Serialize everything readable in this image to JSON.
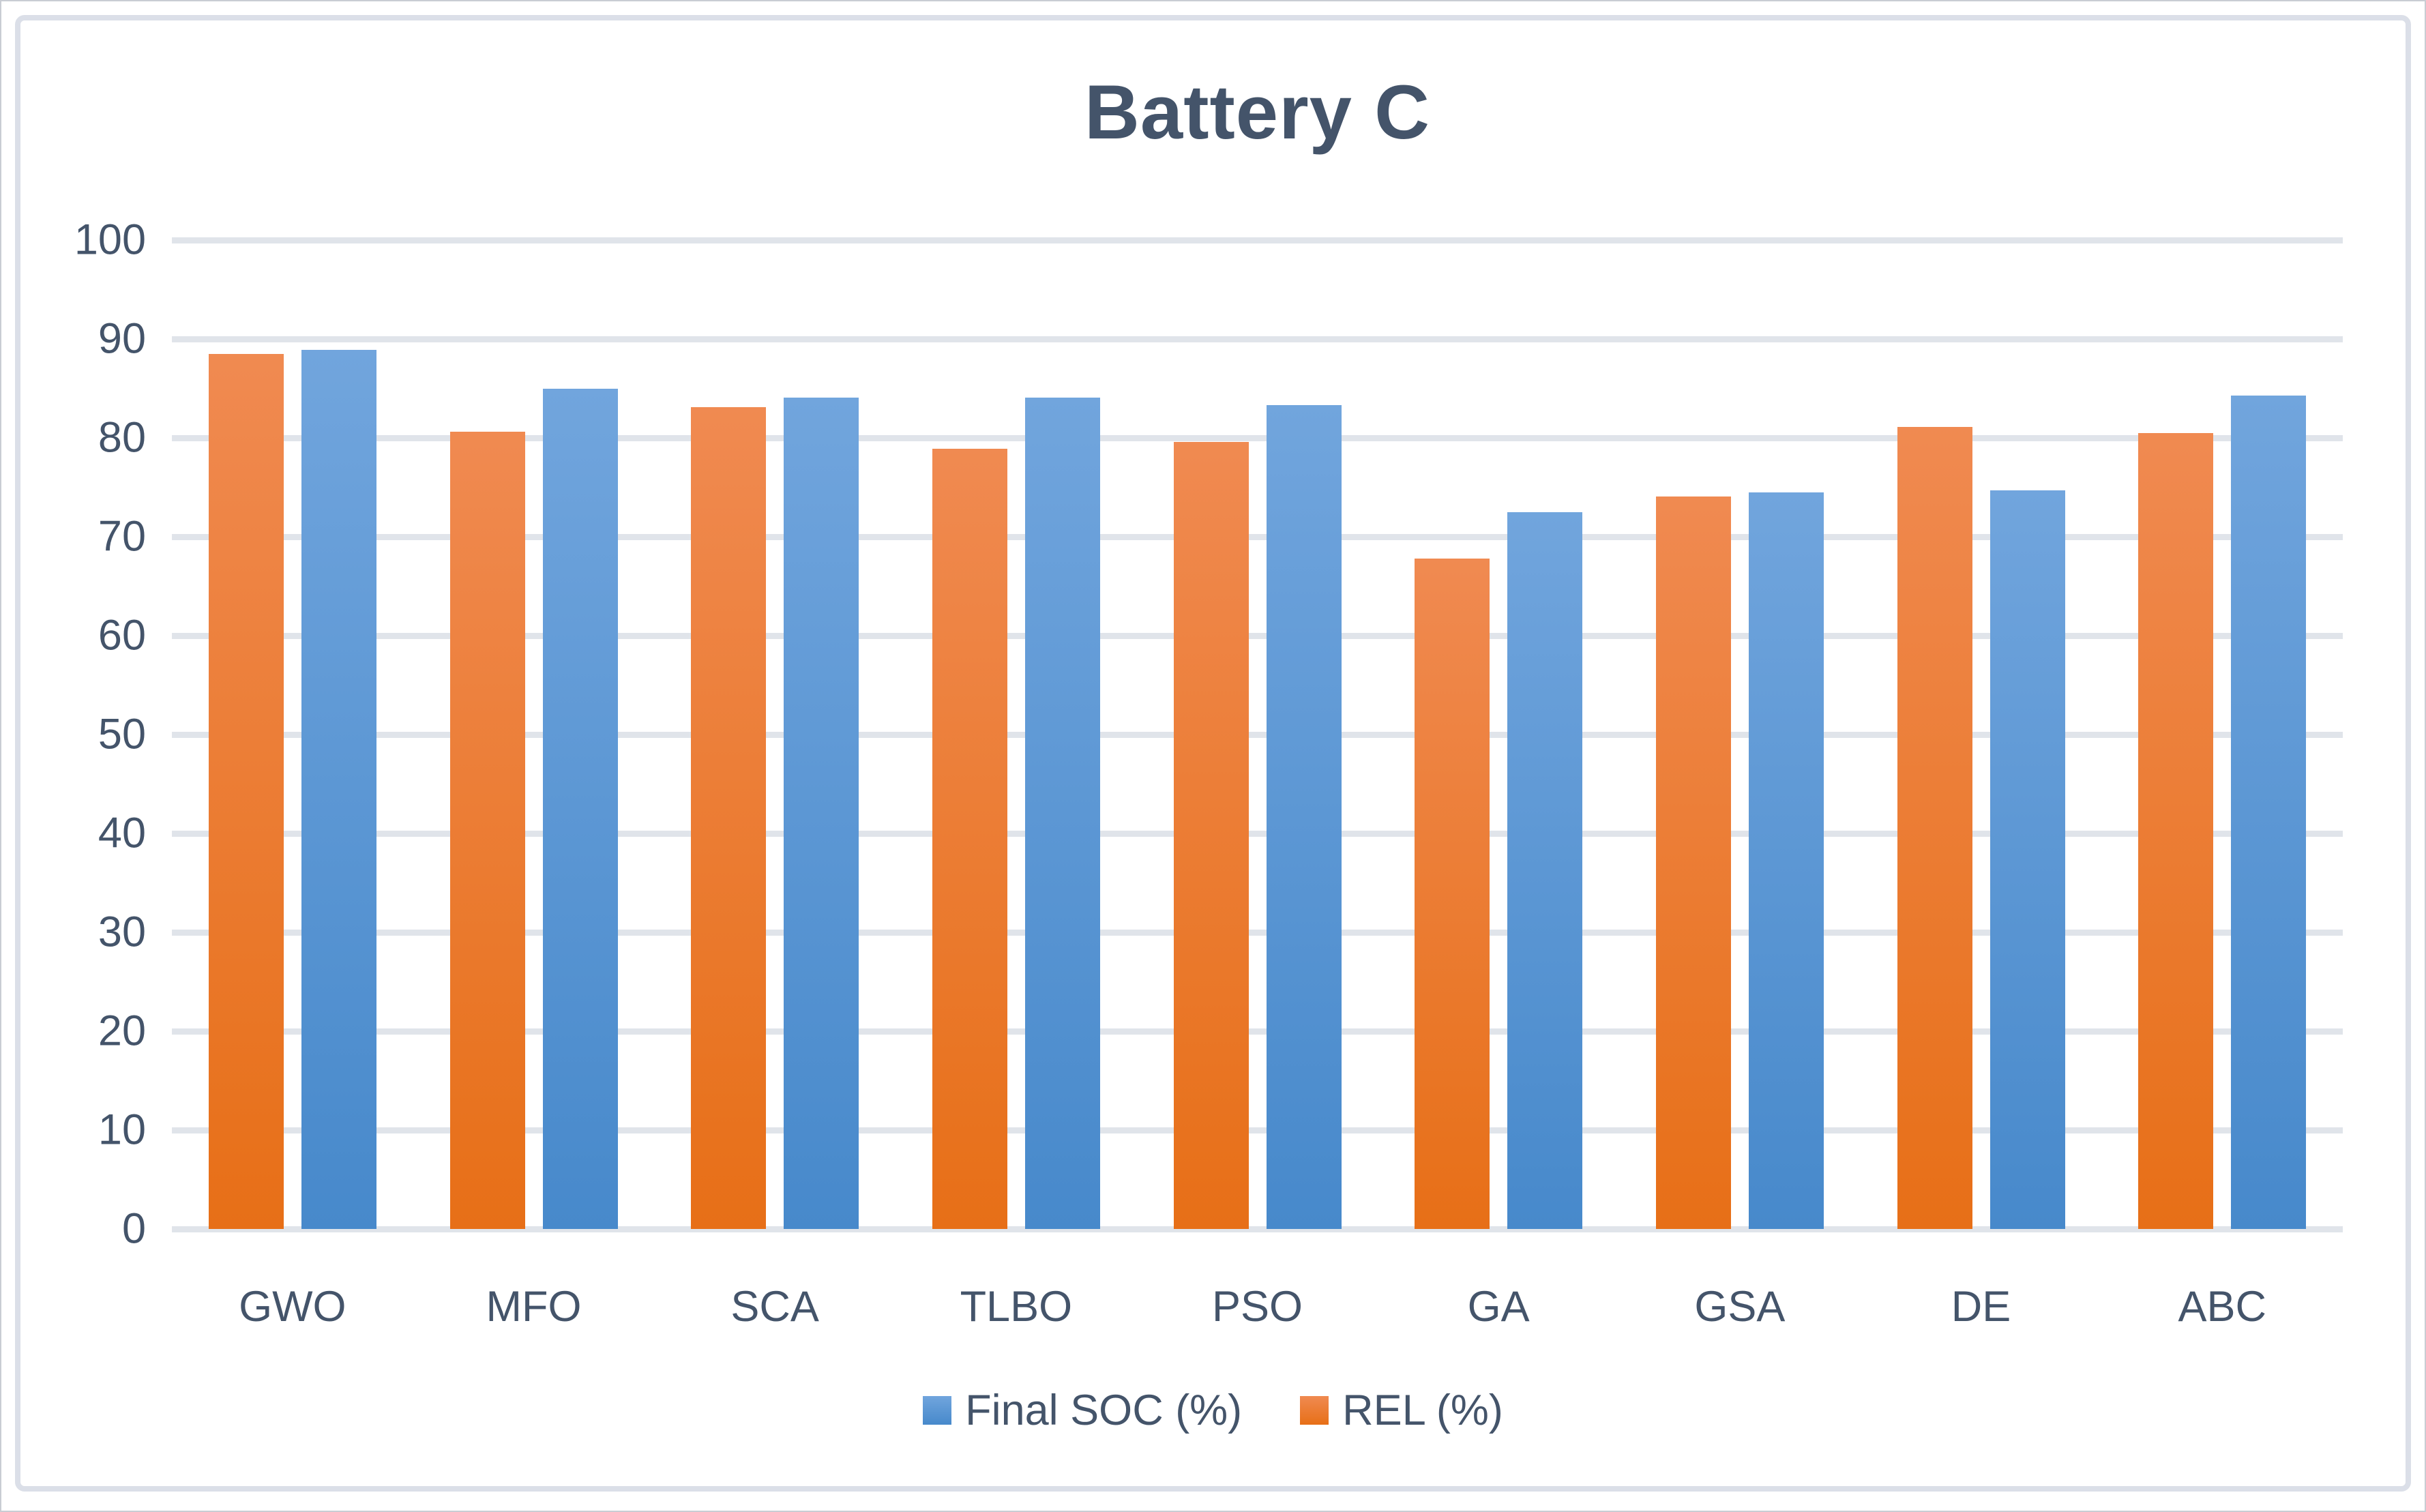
{
  "title": "Battery C",
  "chart_data": {
    "type": "bar",
    "title": "Battery C",
    "categories": [
      "GWO",
      "MFO",
      "SCA",
      "TLBO",
      "PSO",
      "GA",
      "GSA",
      "DE",
      "ABC"
    ],
    "series": [
      {
        "name": "REL (%)",
        "key": "rel",
        "color_top": "#F08A51",
        "color_bottom": "#E76F17",
        "values": [
          88.5,
          80.6,
          83.1,
          78.9,
          79.6,
          67.8,
          74.1,
          81.1,
          80.5
        ]
      },
      {
        "name": "Final SOC (%)",
        "key": "soc",
        "color_top": "#71A5DD",
        "color_bottom": "#4789CB",
        "values": [
          88.9,
          85.0,
          84.1,
          84.1,
          83.3,
          72.5,
          74.5,
          74.7,
          84.3
        ]
      }
    ],
    "legend_order": [
      "Final SOC (%)",
      "REL (%)"
    ],
    "legend_position": "bottom",
    "grid": true,
    "y_axis": {
      "min": 0,
      "max": 100,
      "ticks": [
        0,
        10,
        20,
        30,
        40,
        50,
        60,
        70,
        80,
        90,
        100
      ]
    },
    "xlabel": "",
    "ylabel": ""
  },
  "colors": {
    "text": "#44546A",
    "gridline": "#E0E4EA",
    "frame_border": "#DBDFE8"
  }
}
